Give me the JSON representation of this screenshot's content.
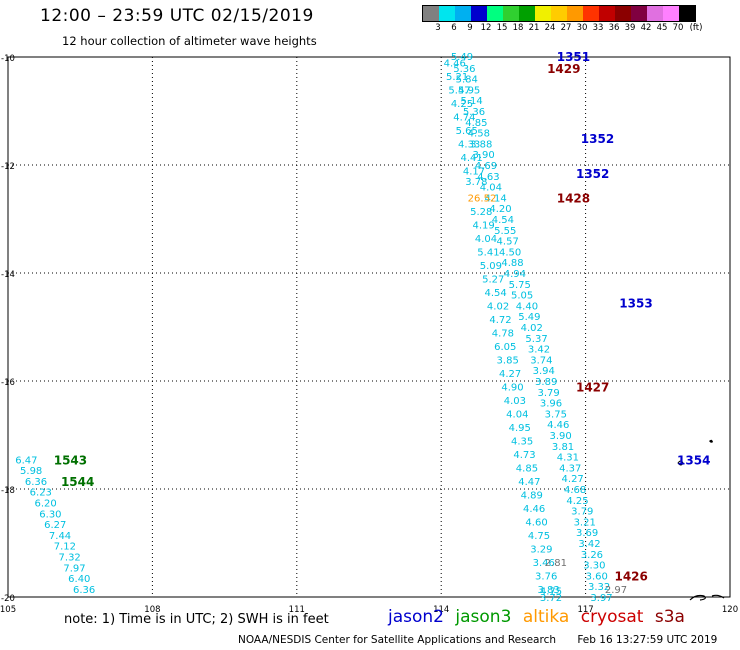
{
  "header": {
    "title": "12:00 – 23:59 UTC 02/15/2019",
    "subtitle": "12 hour collection of altimeter wave heights"
  },
  "color_scale": {
    "unit": "(ft)",
    "ticks": [
      "3",
      "6",
      "9",
      "12",
      "15",
      "18",
      "21",
      "24",
      "27",
      "30",
      "33",
      "36",
      "39",
      "42",
      "45",
      "70"
    ],
    "colors": [
      "#808080",
      "#00e5ee",
      "#00b0f0",
      "#0000cd",
      "#00ff80",
      "#30d030",
      "#00a000",
      "#f0f000",
      "#ffcc00",
      "#ff9900",
      "#ff3300",
      "#c00000",
      "#8b0000",
      "#800040",
      "#e070e0",
      "#ff80ff",
      "#000000"
    ]
  },
  "map": {
    "lat_labels": [
      "-10",
      "-12",
      "-14",
      "-16",
      "-18",
      "-20"
    ],
    "lon_labels": [
      "105",
      "108",
      "111",
      "114",
      "117",
      "120"
    ],
    "lat_range": [
      -20,
      -10
    ],
    "lon_range": [
      105,
      120
    ],
    "landmass_color": "#000000"
  },
  "time_labels": [
    {
      "text": "1351",
      "lon": 116.4,
      "lat": -9.98,
      "color": "#0000cd"
    },
    {
      "text": "1429",
      "lon": 116.2,
      "lat": -10.2,
      "color": "#8b0000"
    },
    {
      "text": "1352",
      "lon": 116.9,
      "lat": -11.5,
      "color": "#0000cd"
    },
    {
      "text": "1352",
      "lon": 116.8,
      "lat": -12.15,
      "color": "#0000cd"
    },
    {
      "text": "1428",
      "lon": 116.4,
      "lat": -12.6,
      "color": "#8b0000"
    },
    {
      "text": "1353",
      "lon": 117.7,
      "lat": -14.55,
      "color": "#0000cd"
    },
    {
      "text": "1427",
      "lon": 116.8,
      "lat": -16.1,
      "color": "#8b0000"
    },
    {
      "text": "1354",
      "lon": 118.9,
      "lat": -17.45,
      "color": "#0000cd"
    },
    {
      "text": "1426",
      "lon": 117.6,
      "lat": -19.6,
      "color": "#8b0000"
    },
    {
      "text": "1543",
      "lon": 105.95,
      "lat": -17.45,
      "color": "#007000"
    },
    {
      "text": "1544",
      "lon": 106.1,
      "lat": -17.85,
      "color": "#007000"
    }
  ],
  "tracks": [
    {
      "name": "jason2-pass",
      "color": "#00c0e0",
      "points": [
        {
          "lon": 114.2,
          "lat": -9.98,
          "v": "5.49"
        },
        {
          "lon": 114.25,
          "lat": -10.2,
          "v": "5.36"
        },
        {
          "lon": 114.3,
          "lat": -10.4,
          "v": "5.84"
        },
        {
          "lon": 114.35,
          "lat": -10.6,
          "v": "5.95"
        },
        {
          "lon": 114.4,
          "lat": -10.8,
          "v": "5.14"
        },
        {
          "lon": 114.45,
          "lat": -11.0,
          "v": "5.36"
        },
        {
          "lon": 114.5,
          "lat": -11.2,
          "v": "4.85"
        },
        {
          "lon": 114.55,
          "lat": -11.4,
          "v": "4.58"
        },
        {
          "lon": 114.6,
          "lat": -11.6,
          "v": "3.88"
        },
        {
          "lon": 114.65,
          "lat": -11.8,
          "v": "3.90"
        },
        {
          "lon": 114.7,
          "lat": -12.0,
          "v": "4.69"
        },
        {
          "lon": 114.75,
          "lat": -12.2,
          "v": "4.63"
        },
        {
          "lon": 114.8,
          "lat": -12.4,
          "v": "4.04"
        },
        {
          "lon": 114.9,
          "lat": -12.6,
          "v": "4.14"
        },
        {
          "lon": 115.0,
          "lat": -12.8,
          "v": "4.20"
        },
        {
          "lon": 115.05,
          "lat": -13.0,
          "v": "4.54"
        },
        {
          "lon": 115.1,
          "lat": -13.2,
          "v": "5.55"
        },
        {
          "lon": 115.15,
          "lat": -13.4,
          "v": "4.57"
        },
        {
          "lon": 115.2,
          "lat": -13.6,
          "v": "4.50"
        },
        {
          "lon": 115.25,
          "lat": -13.8,
          "v": "4.88"
        },
        {
          "lon": 115.3,
          "lat": -14.0,
          "v": "4.94"
        },
        {
          "lon": 115.4,
          "lat": -14.2,
          "v": "5.75"
        },
        {
          "lon": 115.45,
          "lat": -14.4,
          "v": "5.05"
        },
        {
          "lon": 115.55,
          "lat": -14.6,
          "v": "4.40"
        },
        {
          "lon": 115.6,
          "lat": -14.8,
          "v": "5.49"
        },
        {
          "lon": 115.65,
          "lat": -15.0,
          "v": "4.02"
        },
        {
          "lon": 115.75,
          "lat": -15.2,
          "v": "5.37"
        },
        {
          "lon": 115.8,
          "lat": -15.4,
          "v": "3.42"
        },
        {
          "lon": 115.85,
          "lat": -15.6,
          "v": "3.74"
        },
        {
          "lon": 115.9,
          "lat": -15.8,
          "v": "3.94"
        },
        {
          "lon": 115.95,
          "lat": -16.0,
          "v": "3.89"
        },
        {
          "lon": 116.0,
          "lat": -16.2,
          "v": "3.79"
        },
        {
          "lon": 116.05,
          "lat": -16.4,
          "v": "3.96"
        },
        {
          "lon": 116.15,
          "lat": -16.6,
          "v": "3.75"
        },
        {
          "lon": 116.2,
          "lat": -16.8,
          "v": "4.46"
        },
        {
          "lon": 116.25,
          "lat": -17.0,
          "v": "3.90"
        },
        {
          "lon": 116.3,
          "lat": -17.2,
          "v": "3.81"
        },
        {
          "lon": 116.4,
          "lat": -17.4,
          "v": "4.31"
        },
        {
          "lon": 116.45,
          "lat": -17.6,
          "v": "4.37"
        },
        {
          "lon": 116.5,
          "lat": -17.8,
          "v": "4.27"
        },
        {
          "lon": 116.55,
          "lat": -18.0,
          "v": "4.68"
        },
        {
          "lon": 116.6,
          "lat": -18.2,
          "v": "4.25"
        },
        {
          "lon": 116.7,
          "lat": -18.4,
          "v": "3.79"
        },
        {
          "lon": 116.75,
          "lat": -18.6,
          "v": "3.21"
        },
        {
          "lon": 116.8,
          "lat": -18.8,
          "v": "3.69"
        },
        {
          "lon": 116.85,
          "lat": -19.0,
          "v": "3.42"
        },
        {
          "lon": 116.9,
          "lat": -19.2,
          "v": "3.26"
        },
        {
          "lon": 116.95,
          "lat": -19.4,
          "v": "3.30"
        },
        {
          "lon": 117.0,
          "lat": -19.6,
          "v": "3.60"
        },
        {
          "lon": 117.05,
          "lat": -19.8,
          "v": "3.32"
        },
        {
          "lon": 117.1,
          "lat": -20.0,
          "v": "3.97"
        }
      ]
    },
    {
      "name": "cryosat-pass",
      "color": "#00c0e0",
      "points": [
        {
          "lon": 114.05,
          "lat": -10.1,
          "v": "4.46"
        },
        {
          "lon": 114.1,
          "lat": -10.35,
          "v": "5.21"
        },
        {
          "lon": 114.15,
          "lat": -10.6,
          "v": "5.47"
        },
        {
          "lon": 114.2,
          "lat": -10.85,
          "v": "4.25"
        },
        {
          "lon": 114.25,
          "lat": -11.1,
          "v": "4.74"
        },
        {
          "lon": 114.3,
          "lat": -11.35,
          "v": "5.65"
        },
        {
          "lon": 114.35,
          "lat": -11.6,
          "v": "4.33"
        },
        {
          "lon": 114.4,
          "lat": -11.85,
          "v": "4.41"
        },
        {
          "lon": 114.45,
          "lat": -12.1,
          "v": "4.17"
        },
        {
          "lon": 114.5,
          "lat": -12.3,
          "v": "3.78"
        },
        {
          "lon": 114.55,
          "lat": -12.6,
          "v": "26.52",
          "color": "#ff9900"
        },
        {
          "lon": 114.6,
          "lat": -12.85,
          "v": "5.28"
        },
        {
          "lon": 114.65,
          "lat": -13.1,
          "v": "4.19"
        },
        {
          "lon": 114.7,
          "lat": -13.35,
          "v": "4.04"
        },
        {
          "lon": 114.75,
          "lat": -13.6,
          "v": "5.41"
        },
        {
          "lon": 114.8,
          "lat": -13.85,
          "v": "5.09"
        },
        {
          "lon": 114.85,
          "lat": -14.1,
          "v": "5.27"
        },
        {
          "lon": 114.9,
          "lat": -14.35,
          "v": "4.54"
        },
        {
          "lon": 114.95,
          "lat": -14.6,
          "v": "4.02"
        },
        {
          "lon": 115.0,
          "lat": -14.85,
          "v": "4.72"
        },
        {
          "lon": 115.05,
          "lat": -15.1,
          "v": "4.78"
        },
        {
          "lon": 115.1,
          "lat": -15.35,
          "v": "6.05"
        },
        {
          "lon": 115.15,
          "lat": -15.6,
          "v": "3.85"
        },
        {
          "lon": 115.2,
          "lat": -15.85,
          "v": "4.27"
        },
        {
          "lon": 115.25,
          "lat": -16.1,
          "v": "4.90"
        },
        {
          "lon": 115.3,
          "lat": -16.35,
          "v": "4.03"
        },
        {
          "lon": 115.35,
          "lat": -16.6,
          "v": "4.04"
        },
        {
          "lon": 115.4,
          "lat": -16.85,
          "v": "4.95"
        },
        {
          "lon": 115.45,
          "lat": -17.1,
          "v": "4.35"
        },
        {
          "lon": 115.5,
          "lat": -17.35,
          "v": "4.73"
        },
        {
          "lon": 115.55,
          "lat": -17.6,
          "v": "4.85"
        },
        {
          "lon": 115.6,
          "lat": -17.85,
          "v": "4.47"
        },
        {
          "lon": 115.65,
          "lat": -18.1,
          "v": "4.89"
        },
        {
          "lon": 115.7,
          "lat": -18.35,
          "v": "4.46"
        },
        {
          "lon": 115.75,
          "lat": -18.6,
          "v": "4.60"
        },
        {
          "lon": 115.8,
          "lat": -18.85,
          "v": "4.75"
        },
        {
          "lon": 115.85,
          "lat": -19.1,
          "v": "3.29"
        },
        {
          "lon": 115.9,
          "lat": -19.35,
          "v": "3.46"
        },
        {
          "lon": 115.95,
          "lat": -19.6,
          "v": "3.76"
        },
        {
          "lon": 116.0,
          "lat": -19.85,
          "v": "3.83"
        },
        {
          "lon": 116.05,
          "lat": -20.0,
          "v": "3.72"
        },
        {
          "lon": 116.05,
          "lat": -19.88,
          "v": "4.75"
        },
        {
          "lon": 116.15,
          "lat": -19.35,
          "v": "2.81",
          "color": "#707070"
        },
        {
          "lon": 117.4,
          "lat": -19.85,
          "v": "2.97",
          "color": "#707070"
        }
      ]
    },
    {
      "name": "jason3-pass",
      "color": "#00c0e0",
      "points": [
        {
          "lon": 105.15,
          "lat": -17.45,
          "v": "6.47"
        },
        {
          "lon": 105.25,
          "lat": -17.65,
          "v": "5.98"
        },
        {
          "lon": 105.35,
          "lat": -17.85,
          "v": "6.36"
        },
        {
          "lon": 105.45,
          "lat": -18.05,
          "v": "6.23"
        },
        {
          "lon": 105.55,
          "lat": -18.25,
          "v": "6.20"
        },
        {
          "lon": 105.65,
          "lat": -18.45,
          "v": "6.30"
        },
        {
          "lon": 105.75,
          "lat": -18.65,
          "v": "6.27"
        },
        {
          "lon": 105.85,
          "lat": -18.85,
          "v": "7.44"
        },
        {
          "lon": 105.95,
          "lat": -19.05,
          "v": "7.12"
        },
        {
          "lon": 106.05,
          "lat": -19.25,
          "v": "7.32"
        },
        {
          "lon": 106.15,
          "lat": -19.45,
          "v": "7.97"
        },
        {
          "lon": 106.25,
          "lat": -19.65,
          "v": "6.40"
        },
        {
          "lon": 106.35,
          "lat": -19.85,
          "v": "6.36"
        }
      ]
    }
  ],
  "note": "note: 1) Time is in UTC; 2) SWH is in feet",
  "legend": [
    {
      "label": "jason2",
      "color": "#0000cd"
    },
    {
      "label": "jason3",
      "color": "#009900"
    },
    {
      "label": "altika",
      "color": "#ff9900"
    },
    {
      "label": "cryosat",
      "color": "#cc0000"
    },
    {
      "label": "s3a",
      "color": "#8b0000"
    }
  ],
  "footer": {
    "source": "NOAA/NESDIS Center for Satellite Applications and Research",
    "timestamp": "Feb 16 13:27:59 UTC 2019"
  }
}
